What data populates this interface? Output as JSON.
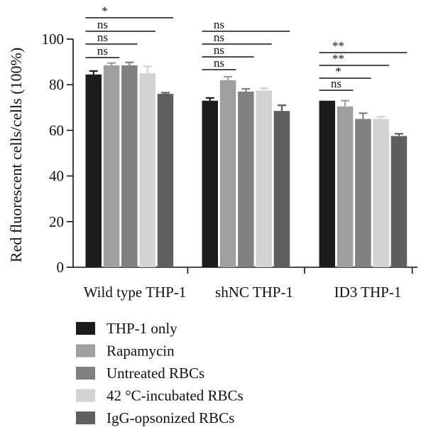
{
  "chart_data": {
    "type": "bar",
    "ylabel": "Red fluorescent cells/cells (100%)",
    "xlabel": "",
    "ylim": [
      0,
      100
    ],
    "yticks": [
      0,
      20,
      40,
      60,
      80,
      100
    ],
    "categories": [
      "Wild type THP-1",
      "shNC THP-1",
      "ID3 THP-1"
    ],
    "series": [
      {
        "name": "THP-1 only",
        "color": "#1c1c1c",
        "values": [
          84.5,
          73.0,
          73.0
        ],
        "errors": [
          1.5,
          1.2,
          0.0
        ]
      },
      {
        "name": "Rapamycin",
        "color": "#9f9f9f",
        "values": [
          88.5,
          82.0,
          70.5
        ],
        "errors": [
          1.0,
          1.5,
          2.5
        ]
      },
      {
        "name": "Untreated RBCs",
        "color": "#808080",
        "values": [
          88.5,
          77.0,
          65.0
        ],
        "errors": [
          1.3,
          1.2,
          2.5
        ]
      },
      {
        "name": "42 °C-incubated RBCs",
        "color": "#d3d3d3",
        "values": [
          85.0,
          77.5,
          65.0
        ],
        "errors": [
          3.0,
          1.0,
          1.0
        ]
      },
      {
        "name": "IgG-opsonized RBCs",
        "color": "#5f5f5f",
        "values": [
          76.0,
          68.5,
          57.5
        ],
        "errors": [
          0.5,
          2.5,
          1.0
        ]
      }
    ],
    "significance": [
      {
        "group": 0,
        "from": 0,
        "to": 1,
        "label": "ns"
      },
      {
        "group": 0,
        "from": 0,
        "to": 2,
        "label": "ns"
      },
      {
        "group": 0,
        "from": 0,
        "to": 3,
        "label": "ns"
      },
      {
        "group": 0,
        "from": 0,
        "to": 4,
        "label": "*"
      },
      {
        "group": 1,
        "from": 0,
        "to": 1,
        "label": "ns"
      },
      {
        "group": 1,
        "from": 0,
        "to": 2,
        "label": "ns"
      },
      {
        "group": 1,
        "from": 0,
        "to": 3,
        "label": "ns"
      },
      {
        "group": 1,
        "from": 0,
        "to": 4,
        "label": "ns"
      },
      {
        "group": 2,
        "from": 0,
        "to": 1,
        "label": "ns"
      },
      {
        "group": 2,
        "from": 0,
        "to": 2,
        "label": "*"
      },
      {
        "group": 2,
        "from": 0,
        "to": 3,
        "label": "**"
      },
      {
        "group": 2,
        "from": 0,
        "to": 4,
        "label": "**"
      }
    ],
    "legend_position": "bottom"
  }
}
